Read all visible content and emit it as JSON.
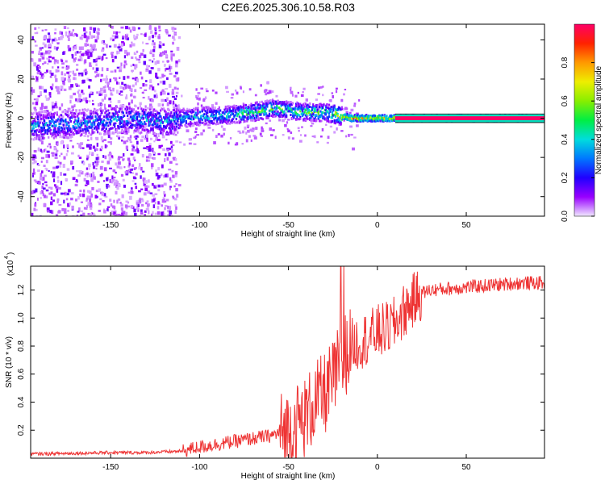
{
  "title": "C2E6.2025.306.10.58.R03",
  "chart_data": [
    {
      "type": "heatmap",
      "xlabel": "Height of straight line (km)",
      "ylabel": "Frequency (Hz)",
      "xlim": [
        -195,
        94
      ],
      "ylim": [
        -50,
        48
      ],
      "xticks": [
        -150,
        -100,
        -50,
        0,
        50
      ],
      "yticks": [
        -40,
        -20,
        0,
        20,
        40
      ],
      "ridge_x": [
        -195,
        -175,
        -160,
        -150,
        -140,
        -120,
        -110,
        -100,
        -90,
        -80,
        -70,
        -60,
        -50,
        -40,
        -30,
        -20,
        -15,
        -10,
        -5,
        0,
        5,
        10,
        15,
        30,
        60,
        94
      ],
      "ridge_freq": [
        -4,
        -3,
        -2,
        -1,
        0,
        -2,
        0,
        1,
        1,
        2,
        3,
        5,
        4,
        3,
        3,
        1,
        0,
        0,
        0,
        0,
        0,
        0,
        0,
        0,
        0,
        0
      ],
      "colorbar": {
        "label": "Normalized spectral amplitude",
        "range": [
          0,
          1
        ],
        "ticks": [
          0.0,
          0.2,
          0.4,
          0.6,
          0.8
        ],
        "tick_labels": [
          "0.0",
          "0.2",
          "0.4",
          "0.6",
          "0.8"
        ]
      }
    },
    {
      "type": "line",
      "xlabel": "Height of straight line (km)",
      "ylabel": "SNR (10 * v/v)",
      "y_scale_label": "(x10",
      "y_scale_exp": "4",
      "y_scale_close": ")",
      "xlim": [
        -195,
        94
      ],
      "ylim": [
        0,
        1.37
      ],
      "xticks": [
        -150,
        -100,
        -50,
        0,
        50
      ],
      "yticks": [
        0.2,
        0.4,
        0.6,
        0.8,
        1.0,
        1.2
      ],
      "ytick_labels": [
        "0.2",
        "0.4",
        "0.6",
        "0.8",
        "1.0",
        "1.2"
      ],
      "color": "#ee3333",
      "series_x": [
        -195,
        -170,
        -150,
        -130,
        -110,
        -100,
        -90,
        -80,
        -70,
        -60,
        -50,
        -45,
        -40,
        -35,
        -30,
        -25,
        -20,
        -15,
        -10,
        -5,
        0,
        5,
        10,
        15,
        20,
        25,
        30,
        40,
        50,
        60,
        70,
        80,
        94
      ],
      "series_y": [
        0.03,
        0.035,
        0.04,
        0.04,
        0.05,
        0.08,
        0.1,
        0.12,
        0.14,
        0.16,
        0.2,
        0.25,
        0.3,
        0.4,
        0.45,
        0.55,
        0.7,
        0.8,
        0.83,
        0.86,
        0.9,
        0.92,
        0.96,
        1.05,
        1.12,
        1.18,
        1.2,
        1.21,
        1.22,
        1.23,
        1.24,
        1.25,
        1.25
      ]
    }
  ]
}
